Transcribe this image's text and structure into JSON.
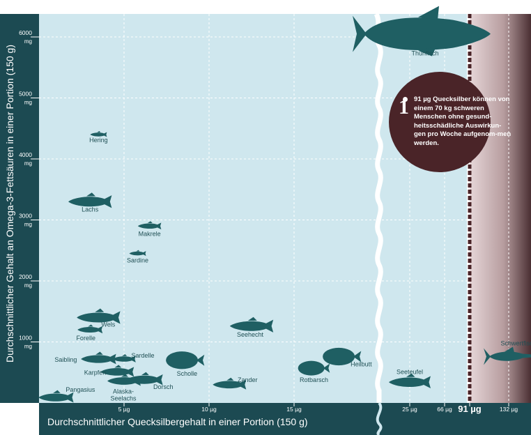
{
  "chart_data": {
    "type": "scatter",
    "ylabel": "Durchschnittlicher Gehalt an Omega-3-Fettsäuren in einer Portion (150 g)",
    "xlabel": "Durchschnittlicher Quecksilbergehalt in einer Portion (150 g)",
    "y_unit": "mg",
    "ylim": [
      0,
      6500
    ],
    "y_ticks": [
      "1000",
      "2000",
      "3000",
      "4000",
      "5000",
      "6000"
    ],
    "x_ticks_left": [
      "5 µg",
      "10 µg",
      "15 µg"
    ],
    "x_ticks_right": [
      "25 µg",
      "66 µg",
      "91 µg",
      "132 µg"
    ],
    "x_scale": "broken",
    "grid": true,
    "threshold": {
      "value": 91,
      "label": "91 µg"
    },
    "points": [
      {
        "name": "Hering",
        "x": 3.5,
        "y": 4400
      },
      {
        "name": "Lachs",
        "x": 3.0,
        "y": 3300
      },
      {
        "name": "Makrele",
        "x": 6.5,
        "y": 2900
      },
      {
        "name": "Sardine",
        "x": 5.8,
        "y": 2450
      },
      {
        "name": "Wels",
        "x": 3.5,
        "y": 1400
      },
      {
        "name": "Forelle",
        "x": 3.0,
        "y": 1200
      },
      {
        "name": "Seehecht",
        "x": 12.5,
        "y": 1260
      },
      {
        "name": "Saibling",
        "x": 3.5,
        "y": 720
      },
      {
        "name": "Sardelle",
        "x": 5.0,
        "y": 720
      },
      {
        "name": "Karpfen",
        "x": 4.6,
        "y": 510
      },
      {
        "name": "Alaska-Seelachs",
        "x": 5.0,
        "y": 360
      },
      {
        "name": "Dorsch",
        "x": 6.2,
        "y": 380
      },
      {
        "name": "Scholle",
        "x": 8.5,
        "y": 700
      },
      {
        "name": "Zander",
        "x": 11.2,
        "y": 300
      },
      {
        "name": "Pangasius",
        "x": 1.0,
        "y": 90
      },
      {
        "name": "Rotbarsch",
        "x": 16.0,
        "y": 570
      },
      {
        "name": "Heilbutt",
        "x": 17.5,
        "y": 760
      },
      {
        "name": "Seeteufel",
        "x": 25.0,
        "y": 340
      },
      {
        "name": "Thunfisch",
        "x": 45.0,
        "y": 6050
      },
      {
        "name": "Schwertfisch",
        "x": 132.0,
        "y": 760
      }
    ]
  },
  "callout": {
    "number": "1",
    "text": "91 µg Quecksilber können von einem 70 kg schweren Menschen ohne gesund-heitsschädliche Auswirkun-gen pro Woche aufgenom-men werden."
  },
  "colors": {
    "dark_teal": "#1c4a52",
    "fish": "#1f5f63",
    "plot_bg": "#cfe7ee",
    "grid": "#ffffff",
    "threshold_bg": "#b9a8ab",
    "callout": "#4a2428",
    "threshold_line": "#4a2428"
  }
}
